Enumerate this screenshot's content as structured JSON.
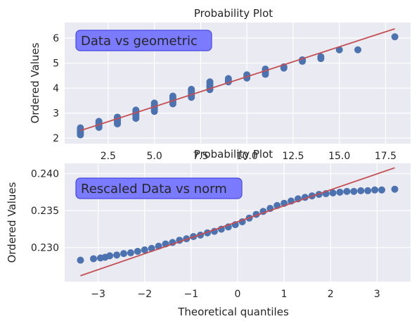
{
  "chart_data": [
    {
      "type": "scatter",
      "title": "Probability Plot",
      "xlabel": "",
      "ylabel": "Ordered Values",
      "annotation": "Data vs geometric",
      "xlim": [
        0.15,
        18.85
      ],
      "ylim": [
        1.78,
        6.62
      ],
      "xticks": [
        2.5,
        5.0,
        7.5,
        10.0,
        12.5,
        15.0,
        17.5
      ],
      "xtick_labels": [
        "2.5",
        "5.0",
        "7.5",
        "10.0",
        "12.5",
        "15.0",
        "17.5"
      ],
      "yticks": [
        2,
        3,
        4,
        5,
        6
      ],
      "ytick_labels": [
        "2",
        "3",
        "4",
        "5",
        "6"
      ],
      "fit_line": {
        "x": [
          1,
          18
        ],
        "y": [
          2.3,
          6.37
        ]
      },
      "points": [
        {
          "x": 1,
          "y": [
            2.13,
            2.19,
            2.24,
            2.3,
            2.35,
            2.41
          ]
        },
        {
          "x": 2,
          "y": [
            2.43,
            2.49,
            2.55,
            2.61,
            2.67
          ]
        },
        {
          "x": 3,
          "y": [
            2.57,
            2.64,
            2.71,
            2.78,
            2.84
          ]
        },
        {
          "x": 4,
          "y": [
            2.79,
            2.86,
            2.93,
            3.0,
            3.07,
            3.12
          ]
        },
        {
          "x": 5,
          "y": [
            3.07,
            3.15,
            3.23,
            3.31,
            3.4
          ]
        },
        {
          "x": 6,
          "y": [
            3.37,
            3.45,
            3.53,
            3.61,
            3.68
          ]
        },
        {
          "x": 7,
          "y": [
            3.63,
            3.71,
            3.79,
            3.87,
            3.95
          ]
        },
        {
          "x": 8,
          "y": [
            3.94,
            4.02,
            4.1,
            4.18,
            4.25
          ]
        },
        {
          "x": 9,
          "y": [
            4.25,
            4.31,
            4.38
          ]
        },
        {
          "x": 10,
          "y": [
            4.4,
            4.47,
            4.53
          ]
        },
        {
          "x": 11,
          "y": [
            4.55,
            4.62,
            4.68,
            4.76
          ]
        },
        {
          "x": 12,
          "y": [
            4.8,
            4.85
          ]
        },
        {
          "x": 13,
          "y": [
            5.07,
            5.13
          ]
        },
        {
          "x": 14,
          "y": [
            5.18,
            5.25
          ]
        },
        {
          "x": 15,
          "y": [
            5.53
          ]
        },
        {
          "x": 16,
          "y": [
            5.53
          ]
        },
        {
          "x": 18,
          "y": [
            6.05
          ]
        }
      ]
    },
    {
      "type": "scatter",
      "title": "Probability Plot",
      "xlabel": "Theoretical quantiles",
      "ylabel": "Ordered Values",
      "annotation": "Rescaled Data vs norm",
      "xlim": [
        -3.72,
        3.72
      ],
      "ylim": [
        0.2254,
        0.2414
      ],
      "xticks": [
        -3,
        -2,
        -1,
        0,
        1,
        2,
        3
      ],
      "xtick_labels": [
        "−3",
        "−2",
        "−1",
        "0",
        "1",
        "2",
        "3"
      ],
      "yticks": [
        0.23,
        0.235,
        0.24
      ],
      "ytick_labels": [
        "0.230",
        "0.235",
        "0.240"
      ],
      "fit_line": {
        "x": [
          -3.38,
          3.38
        ],
        "y": [
          0.2262,
          0.2408
        ]
      },
      "points": [
        {
          "x": -3.38,
          "y": 0.2283
        },
        {
          "x": -3.1,
          "y": 0.2285
        },
        {
          "x": -2.95,
          "y": 0.2286
        },
        {
          "x": -2.85,
          "y": 0.2287
        },
        {
          "x": -2.75,
          "y": 0.2289
        },
        {
          "x": -2.6,
          "y": 0.229
        },
        {
          "x": -2.45,
          "y": 0.2292
        },
        {
          "x": -2.3,
          "y": 0.2293
        },
        {
          "x": -2.15,
          "y": 0.2295
        },
        {
          "x": -2.0,
          "y": 0.2297
        },
        {
          "x": -1.85,
          "y": 0.2299
        },
        {
          "x": -1.7,
          "y": 0.2302
        },
        {
          "x": -1.55,
          "y": 0.2305
        },
        {
          "x": -1.4,
          "y": 0.2307
        },
        {
          "x": -1.25,
          "y": 0.231
        },
        {
          "x": -1.1,
          "y": 0.2312
        },
        {
          "x": -0.95,
          "y": 0.2315
        },
        {
          "x": -0.8,
          "y": 0.2317
        },
        {
          "x": -0.65,
          "y": 0.232
        },
        {
          "x": -0.5,
          "y": 0.2322
        },
        {
          "x": -0.35,
          "y": 0.2325
        },
        {
          "x": -0.2,
          "y": 0.2328
        },
        {
          "x": -0.05,
          "y": 0.2331
        },
        {
          "x": 0.1,
          "y": 0.2335
        },
        {
          "x": 0.25,
          "y": 0.234
        },
        {
          "x": 0.4,
          "y": 0.2345
        },
        {
          "x": 0.55,
          "y": 0.2349
        },
        {
          "x": 0.7,
          "y": 0.2353
        },
        {
          "x": 0.85,
          "y": 0.2357
        },
        {
          "x": 1.0,
          "y": 0.236
        },
        {
          "x": 1.15,
          "y": 0.2363
        },
        {
          "x": 1.3,
          "y": 0.2366
        },
        {
          "x": 1.45,
          "y": 0.2368
        },
        {
          "x": 1.6,
          "y": 0.237
        },
        {
          "x": 1.75,
          "y": 0.2372
        },
        {
          "x": 1.9,
          "y": 0.2373
        },
        {
          "x": 2.05,
          "y": 0.2374
        },
        {
          "x": 2.2,
          "y": 0.2375
        },
        {
          "x": 2.35,
          "y": 0.2376
        },
        {
          "x": 2.5,
          "y": 0.2376
        },
        {
          "x": 2.65,
          "y": 0.2377
        },
        {
          "x": 2.8,
          "y": 0.2377
        },
        {
          "x": 2.95,
          "y": 0.2378
        },
        {
          "x": 3.1,
          "y": 0.2378
        },
        {
          "x": 3.38,
          "y": 0.2379
        }
      ]
    }
  ],
  "colors": {
    "axes_bg": "#eaeaf2",
    "grid": "#ffffff",
    "points": "#4c72b0",
    "fit_line": "#c44e52",
    "anno_fill": "#7b7bff",
    "anno_edge": "#4747e0",
    "text": "#262626"
  }
}
